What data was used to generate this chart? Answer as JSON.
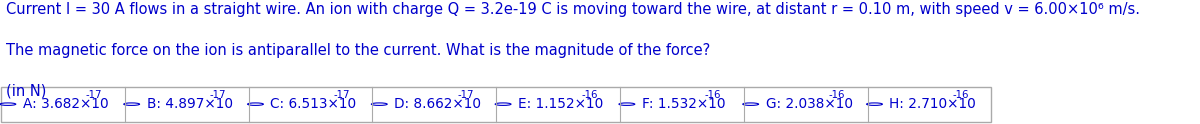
{
  "title_line1": "Current I = 30 A flows in a straight wire. An ion with charge Q = 3.2e-19 C is moving toward the wire, at distant r = 0.10 m, with speed v = 6.00×10⁶ m/s.",
  "title_line2": "The magnetic force on the ion is antiparallel to the current. What is the magnitude of the force?",
  "title_line3": "(in N)",
  "text_color": "#0000CC",
  "bg_color": "#ffffff",
  "options_raw": [
    {
      "label": "A",
      "mantissa": "3.682",
      "exp": "-17"
    },
    {
      "label": "B",
      "mantissa": "4.897",
      "exp": "-17"
    },
    {
      "label": "C",
      "mantissa": "6.513",
      "exp": "-17"
    },
    {
      "label": "D",
      "mantissa": "8.662",
      "exp": "-17"
    },
    {
      "label": "E",
      "mantissa": "1.152",
      "exp": "-16"
    },
    {
      "label": "F",
      "mantissa": "1.532",
      "exp": "-16"
    },
    {
      "label": "G",
      "mantissa": "2.038",
      "exp": "-16"
    },
    {
      "label": "H",
      "mantissa": "2.710",
      "exp": "-16"
    }
  ],
  "font_size_text": 10.5,
  "font_size_options": 9.8,
  "figsize": [
    12.0,
    1.24
  ]
}
